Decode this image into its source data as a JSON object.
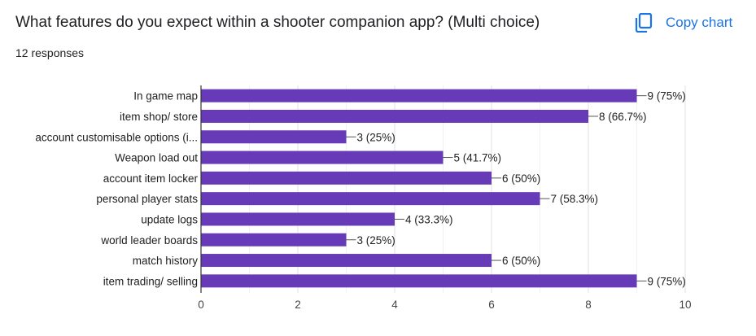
{
  "header": {
    "title": "What features do you expect within a shooter companion app? (Multi choice)",
    "responses": "12 responses",
    "copy_label": "Copy chart",
    "copy_icon": "copy-icon"
  },
  "colors": {
    "bar": "#673ab7",
    "accent": "#1a73e8",
    "grid": "#e6e6e6",
    "axis": "#333333"
  },
  "chart_data": {
    "type": "bar",
    "orientation": "horizontal",
    "title": "What features do you expect within a shooter companion app? (Multi choice)",
    "categories": [
      "In game map",
      "item shop/ store",
      "account customisable options (i...",
      "Weapon load out",
      "account item locker",
      "personal player stats",
      "update logs",
      "world leader boards",
      "match history",
      "item trading/ selling"
    ],
    "values": [
      9,
      8,
      3,
      5,
      6,
      7,
      4,
      3,
      6,
      9
    ],
    "data_labels": [
      "9 (75%)",
      "8 (66.7%)",
      "3 (25%)",
      "5 (41.7%)",
      "6 (50%)",
      "7 (58.3%)",
      "4 (33.3%)",
      "3 (25%)",
      "6 (50%)",
      "9 (75%)"
    ],
    "xlim": [
      0,
      10
    ],
    "xticks": [
      0,
      2,
      4,
      6,
      8,
      10
    ],
    "xlabel": "",
    "ylabel": "",
    "grid": true,
    "legend": "none"
  }
}
